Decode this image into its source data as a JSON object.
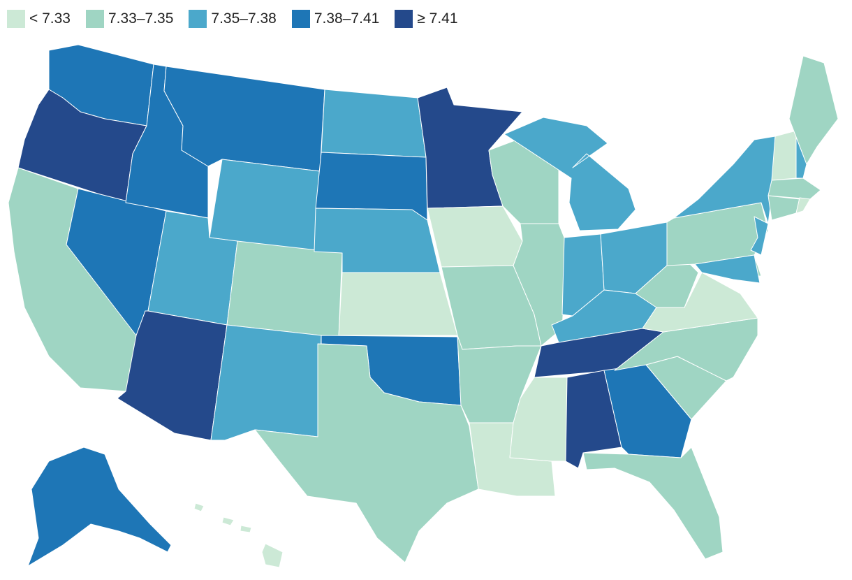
{
  "legend": {
    "items": [
      {
        "label": "< 7.33",
        "color": "#cce9d6"
      },
      {
        "label": "7.33–7.35",
        "color": "#9fd5c3"
      },
      {
        "label": "7.35–7.38",
        "color": "#4ba8cb"
      },
      {
        "label": "7.38–7.41",
        "color": "#1e76b6"
      },
      {
        "label": "≥ 7.41",
        "color": "#24498b"
      }
    ]
  },
  "states": [
    {
      "name": "WA",
      "class": 3
    },
    {
      "name": "OR",
      "class": 4
    },
    {
      "name": "CA",
      "class": 1
    },
    {
      "name": "NV",
      "class": 3
    },
    {
      "name": "ID",
      "class": 3
    },
    {
      "name": "MT",
      "class": 3
    },
    {
      "name": "WY",
      "class": 2
    },
    {
      "name": "UT",
      "class": 2
    },
    {
      "name": "AZ",
      "class": 4
    },
    {
      "name": "CO",
      "class": 1
    },
    {
      "name": "NM",
      "class": 2
    },
    {
      "name": "ND",
      "class": 2
    },
    {
      "name": "SD",
      "class": 3
    },
    {
      "name": "NE",
      "class": 2
    },
    {
      "name": "KS",
      "class": 0
    },
    {
      "name": "OK",
      "class": 3
    },
    {
      "name": "TX",
      "class": 1
    },
    {
      "name": "MN",
      "class": 4
    },
    {
      "name": "IA",
      "class": 0
    },
    {
      "name": "MO",
      "class": 1
    },
    {
      "name": "AR",
      "class": 1
    },
    {
      "name": "LA",
      "class": 0
    },
    {
      "name": "WI",
      "class": 1
    },
    {
      "name": "IL",
      "class": 1
    },
    {
      "name": "MI",
      "class": 2
    },
    {
      "name": "IN",
      "class": 2
    },
    {
      "name": "OH",
      "class": 2
    },
    {
      "name": "KY",
      "class": 2
    },
    {
      "name": "TN",
      "class": 4
    },
    {
      "name": "MS",
      "class": 0
    },
    {
      "name": "AL",
      "class": 4
    },
    {
      "name": "GA",
      "class": 3
    },
    {
      "name": "FL",
      "class": 1
    },
    {
      "name": "SC",
      "class": 1
    },
    {
      "name": "NC",
      "class": 1
    },
    {
      "name": "VA",
      "class": 0
    },
    {
      "name": "WV",
      "class": 1
    },
    {
      "name": "PA",
      "class": 1
    },
    {
      "name": "NY",
      "class": 2
    },
    {
      "name": "VT",
      "class": 0
    },
    {
      "name": "NH",
      "class": 2
    },
    {
      "name": "ME",
      "class": 1
    },
    {
      "name": "MA",
      "class": 1
    },
    {
      "name": "CT",
      "class": 1
    },
    {
      "name": "RI",
      "class": 0
    },
    {
      "name": "NJ",
      "class": 2
    },
    {
      "name": "DE",
      "class": 1
    },
    {
      "name": "MD",
      "class": 2
    },
    {
      "name": "AK",
      "class": 3
    },
    {
      "name": "HI",
      "class": 0
    }
  ]
}
